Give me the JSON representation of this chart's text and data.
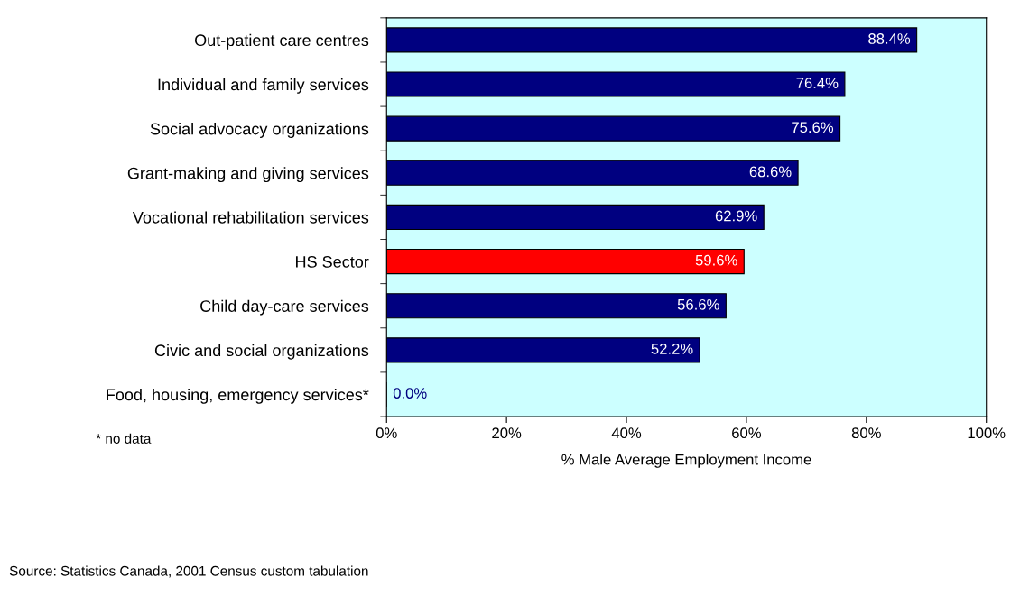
{
  "chart_data": {
    "type": "bar",
    "orientation": "horizontal",
    "xlabel": "% Male Average Employment Income",
    "categories": [
      "Out-patient care centres",
      "Individual and family services",
      "Social advocacy organizations",
      "Grant-making and giving services",
      "Vocational rehabilitation services",
      "HS Sector",
      "Child day-care services",
      "Civic and social organizations",
      "Food, housing, emergency services*"
    ],
    "values": [
      88.4,
      76.4,
      75.6,
      68.6,
      62.9,
      59.6,
      56.6,
      52.2,
      0.0
    ],
    "colors": [
      "#000080",
      "#000080",
      "#000080",
      "#000080",
      "#000080",
      "#ff0000",
      "#000080",
      "#000080",
      "#000080"
    ],
    "value_labels": [
      "88.4%",
      "76.4%",
      "75.6%",
      "68.6%",
      "62.9%",
      "59.6%",
      "56.6%",
      "52.2%",
      "0.0%"
    ],
    "xlim": [
      0,
      100
    ],
    "xticks": [
      {
        "value": 0,
        "label": "0%"
      },
      {
        "value": 20,
        "label": "20%"
      },
      {
        "value": 40,
        "label": "40%"
      },
      {
        "value": 60,
        "label": "60%"
      },
      {
        "value": 80,
        "label": "80%"
      },
      {
        "value": 100,
        "label": "100%"
      }
    ],
    "grid": false,
    "legend": false,
    "annotations": [
      "* no data",
      "Source: Statistics Canada, 2001 Census custom tabulation"
    ]
  }
}
